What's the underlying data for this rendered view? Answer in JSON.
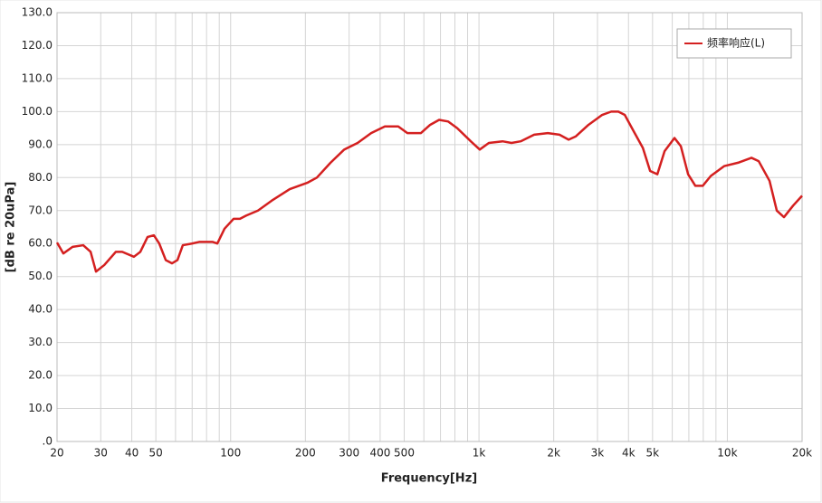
{
  "chart_data": {
    "type": "line",
    "x_label": "Frequency[Hz]",
    "y_label": "[dB re 20uPa]",
    "x_scale": "log",
    "grid": true,
    "legend": "top-right",
    "xlim": [
      20,
      20000
    ],
    "ylim": [
      0,
      130
    ],
    "xticks": [
      20,
      30,
      40,
      50,
      100,
      200,
      300,
      400,
      500,
      {
        "value": 1000,
        "label": "1k"
      },
      {
        "value": 2000,
        "label": "2k"
      },
      {
        "value": 3000,
        "label": "3k"
      },
      {
        "value": 4000,
        "label": "4k"
      },
      {
        "value": 5000,
        "label": "5k"
      },
      {
        "value": 10000,
        "label": "10k"
      },
      {
        "value": 20000,
        "label": "20k"
      }
    ],
    "minor_xticks": [
      60,
      70,
      80,
      90,
      600,
      700,
      800,
      900,
      6000,
      7000,
      8000,
      9000
    ],
    "yticks": [
      {
        "value": 0,
        "label": ".0"
      },
      {
        "value": 10,
        "label": "10.0"
      },
      {
        "value": 20,
        "label": "20.0"
      },
      {
        "value": 30,
        "label": "30.0"
      },
      {
        "value": 40,
        "label": "40.0"
      },
      {
        "value": 50,
        "label": "50.0"
      },
      {
        "value": 60,
        "label": "60.0"
      },
      {
        "value": 70,
        "label": "70.0"
      },
      {
        "value": 80,
        "label": "80.0"
      },
      {
        "value": 90,
        "label": "90.0"
      },
      {
        "value": 100,
        "label": "100.0"
      },
      {
        "value": 110,
        "label": "110.0"
      },
      {
        "value": 120,
        "label": "120.0"
      },
      {
        "value": 130,
        "label": "130.0"
      }
    ],
    "x": [
      20,
      21.2,
      23.1,
      25.5,
      27.3,
      28.7,
      31,
      34.5,
      36.6,
      40.8,
      43.3,
      46.3,
      49.1,
      51.6,
      54.8,
      58.1,
      61.1,
      64.2,
      69.8,
      74.7,
      84.7,
      88.4,
      94.5,
      102.8,
      109,
      115.6,
      128.9,
      146.3,
      173,
      204.6,
      222.5,
      252.5,
      286.6,
      324.6,
      368,
      418,
      473,
      515,
      584,
      636,
      691,
      752,
      817,
      927,
      1007,
      1096,
      1244,
      1352,
      1472,
      1668,
      1893,
      2109,
      2296,
      2455,
      2761,
      3133,
      3408,
      3640,
      3864,
      4200,
      4570,
      4888,
      5227,
      5589,
      6127,
      6500,
      6953,
      7435,
      7960,
      8580,
      9727,
      11040,
      12510,
      13370,
      14790,
      15820,
      16910,
      18400,
      20000
    ],
    "series": [
      {
        "name": "频率响应(L)",
        "color": "#d42020",
        "values": [
          60.3,
          57,
          59,
          59.5,
          57.5,
          51.5,
          53.5,
          57.5,
          57.5,
          56,
          57.5,
          62,
          62.5,
          60,
          55,
          54,
          55,
          59.5,
          60,
          60.5,
          60.5,
          60,
          64.5,
          67.5,
          67.5,
          68.5,
          70,
          73,
          76.5,
          78.5,
          80,
          84.5,
          88.5,
          90.5,
          93.5,
          95.5,
          95.5,
          93.5,
          93.5,
          96,
          97.5,
          97,
          95,
          91,
          88.5,
          90.5,
          91,
          90.5,
          91,
          93,
          93.5,
          93,
          91.5,
          92.5,
          96,
          99,
          100,
          100,
          99,
          94,
          89,
          82,
          81,
          88,
          92,
          89.5,
          81,
          77.5,
          77.5,
          80.5,
          83.5,
          84.5,
          86,
          85,
          79,
          70,
          68,
          71.5,
          74.5
        ]
      }
    ]
  }
}
